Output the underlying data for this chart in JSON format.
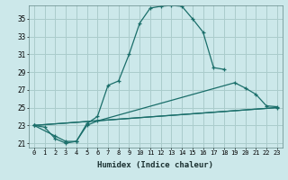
{
  "xlabel": "Humidex (Indice chaleur)",
  "background_color": "#cce8ea",
  "grid_color": "#aacccc",
  "line_color": "#1a6e6a",
  "xlim": [
    -0.5,
    23.5
  ],
  "ylim": [
    20.5,
    36.5
  ],
  "yticks": [
    21,
    23,
    25,
    27,
    29,
    31,
    33,
    35
  ],
  "xticks": [
    0,
    1,
    2,
    3,
    4,
    5,
    6,
    7,
    8,
    9,
    10,
    11,
    12,
    13,
    14,
    15,
    16,
    17,
    18,
    19,
    20,
    21,
    22,
    23
  ],
  "line1_x": [
    0,
    1,
    2,
    3,
    4,
    5,
    6,
    7,
    8,
    9,
    10,
    11,
    12,
    13,
    14,
    15,
    16,
    17,
    18
  ],
  "line1_y": [
    23,
    22.8,
    21.5,
    21,
    21.2,
    23.2,
    24.0,
    27.5,
    28.0,
    31.0,
    34.5,
    36.2,
    36.4,
    36.5,
    36.4,
    35.0,
    33.5,
    29.5,
    29.3
  ],
  "line2_x": [
    0,
    2,
    3,
    4,
    5,
    6,
    19,
    20,
    21,
    22,
    23
  ],
  "line2_y": [
    23,
    21.8,
    21.2,
    21.2,
    23.0,
    23.5,
    27.8,
    27.2,
    26.5,
    25.2,
    25.1
  ],
  "line3_x": [
    0,
    23
  ],
  "line3_y": [
    23,
    25.0
  ],
  "line4_x": [
    0,
    23
  ],
  "line4_y": [
    23,
    25.0
  ]
}
